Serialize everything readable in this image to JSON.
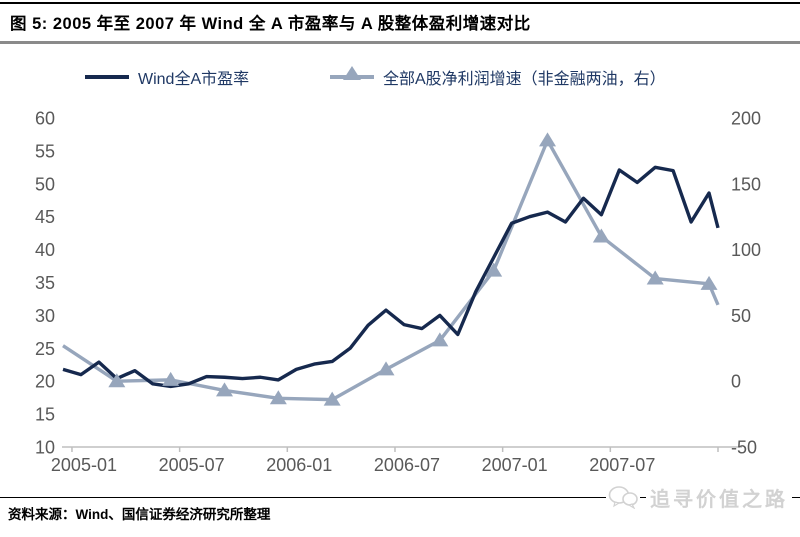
{
  "header": {
    "title": "图 5: 2005 年至 2007 年 Wind 全 A 市盈率与 A 股整体盈利增速对比"
  },
  "legend": {
    "pe_label": "Wind全A市盈率",
    "growth_label": "全部A股净利润增速（非金融两油，右）"
  },
  "footer": {
    "source": "资料来源：Wind、国信证券经济研究所整理",
    "watermark": "追寻价值之路"
  },
  "colors": {
    "navy": "#16294E",
    "gray_blue": "#97A6BC",
    "axis_text": "#595959",
    "axis_line": "#BFBFBF"
  },
  "chart_data": {
    "type": "line",
    "title": "图 5: 2005 年至 2007 年 Wind 全 A 市盈率与 A 股整体盈利增速对比",
    "grid": false,
    "legend_position": "top",
    "x_tick_labels": [
      "2005-01",
      "2005-07",
      "2006-01",
      "2006-07",
      "2007-01",
      "2007-07"
    ],
    "left_axis": {
      "min": 10,
      "max": 60,
      "step": 5,
      "ticks": [
        10,
        15,
        20,
        25,
        30,
        35,
        40,
        45,
        50,
        55,
        60
      ]
    },
    "right_axis": {
      "min": -50,
      "max": 200,
      "step": 50,
      "ticks": [
        -50,
        0,
        50,
        100,
        150,
        200
      ]
    },
    "series": [
      {
        "name": "Wind全A市盈率",
        "axis": "left",
        "color": "#16294E",
        "marker": "none",
        "x": [
          "2004-12",
          "2005-01",
          "2005-02",
          "2005-03",
          "2005-04",
          "2005-05",
          "2005-06",
          "2005-07",
          "2005-08",
          "2005-09",
          "2005-10",
          "2005-11",
          "2005-12",
          "2006-01",
          "2006-02",
          "2006-03",
          "2006-04",
          "2006-05",
          "2006-06",
          "2006-07",
          "2006-08",
          "2006-09",
          "2006-10",
          "2006-11",
          "2006-12",
          "2007-01",
          "2007-02",
          "2007-03",
          "2007-04",
          "2007-05",
          "2007-06",
          "2007-07",
          "2007-08",
          "2007-09",
          "2007-10",
          "2007-11",
          "2007-12"
        ],
        "values": [
          21.8,
          21.0,
          22.9,
          20.4,
          21.6,
          19.6,
          19.2,
          19.6,
          20.7,
          20.6,
          20.4,
          20.6,
          20.2,
          21.8,
          22.6,
          23.0,
          25.0,
          28.5,
          30.8,
          28.6,
          28.0,
          30.0,
          27.1,
          33.6,
          38.8,
          44.0,
          45.0,
          45.7,
          44.2,
          47.8,
          45.3,
          52.1,
          50.2,
          52.5,
          52.0,
          44.2,
          48.6
        ],
        "end_extra": 43.3
      },
      {
        "name": "全部A股净利润增速（非金融两油，右）",
        "axis": "right",
        "color": "#97A6BC",
        "marker": "triangle",
        "x": [
          "2004-12",
          "2005-03",
          "2005-06",
          "2005-09",
          "2005-12",
          "2006-03",
          "2006-06",
          "2006-09",
          "2006-12",
          "2007-03",
          "2007-06",
          "2007-09",
          "2007-12"
        ],
        "values": [
          27,
          0,
          1,
          -7,
          -13,
          -14,
          9,
          31,
          84,
          183,
          110,
          78,
          74
        ],
        "end_extra": 58
      }
    ]
  }
}
